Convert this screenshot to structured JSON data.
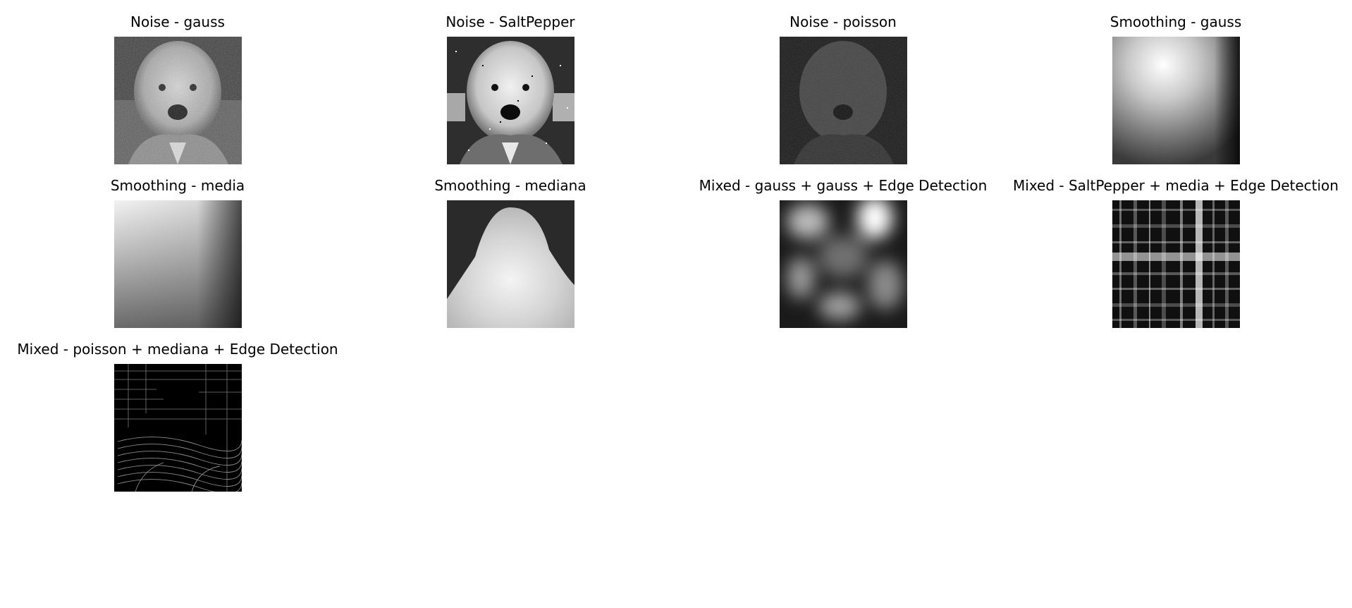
{
  "figure": {
    "panels": [
      {
        "title": "Noise - gauss",
        "image": "noisy-dog-photo-icon"
      },
      {
        "title": "Noise - SaltPepper",
        "image": "salt-pepper-dog-photo-icon"
      },
      {
        "title": "Noise - poisson",
        "image": "dark-noisy-dog-photo-icon"
      },
      {
        "title": "Smoothing - gauss",
        "image": "gaussian-blur-icon"
      },
      {
        "title": "Smoothing - media",
        "image": "mean-blur-icon"
      },
      {
        "title": "Smoothing - mediana",
        "image": "median-blur-icon"
      },
      {
        "title": "Mixed - gauss + gauss + Edge Detection",
        "image": "blurred-edge-map-icon"
      },
      {
        "title": "Mixed - SaltPepper + media + Edge Detection",
        "image": "plaid-edge-map-icon"
      },
      {
        "title": "Mixed - poisson + mediana + Edge Detection",
        "image": "contour-edge-map-icon"
      }
    ]
  }
}
